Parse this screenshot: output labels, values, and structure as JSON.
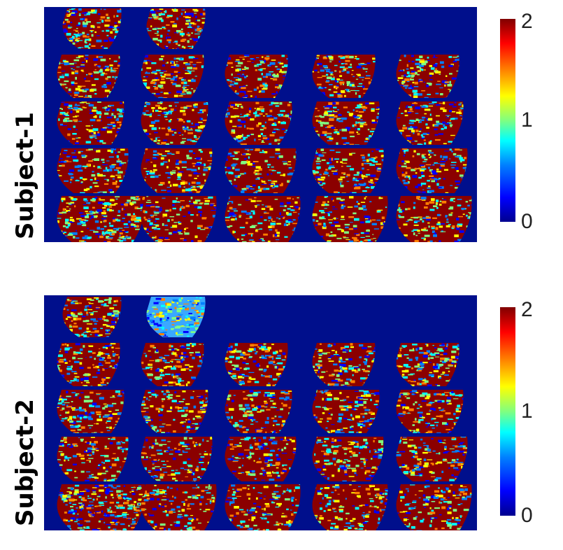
{
  "subjects": [
    {
      "label": "Subject-1"
    },
    {
      "label": "Subject-2"
    }
  ],
  "colorbar": {
    "ticks": [
      "2",
      "1",
      "0"
    ],
    "min": 0,
    "max": 2,
    "colormap": "jet"
  },
  "colors": {
    "background": "#000f8c",
    "dominant": "#8b0000"
  },
  "grid": {
    "rows": 5,
    "columns": 5,
    "first_row_slices": 2
  }
}
